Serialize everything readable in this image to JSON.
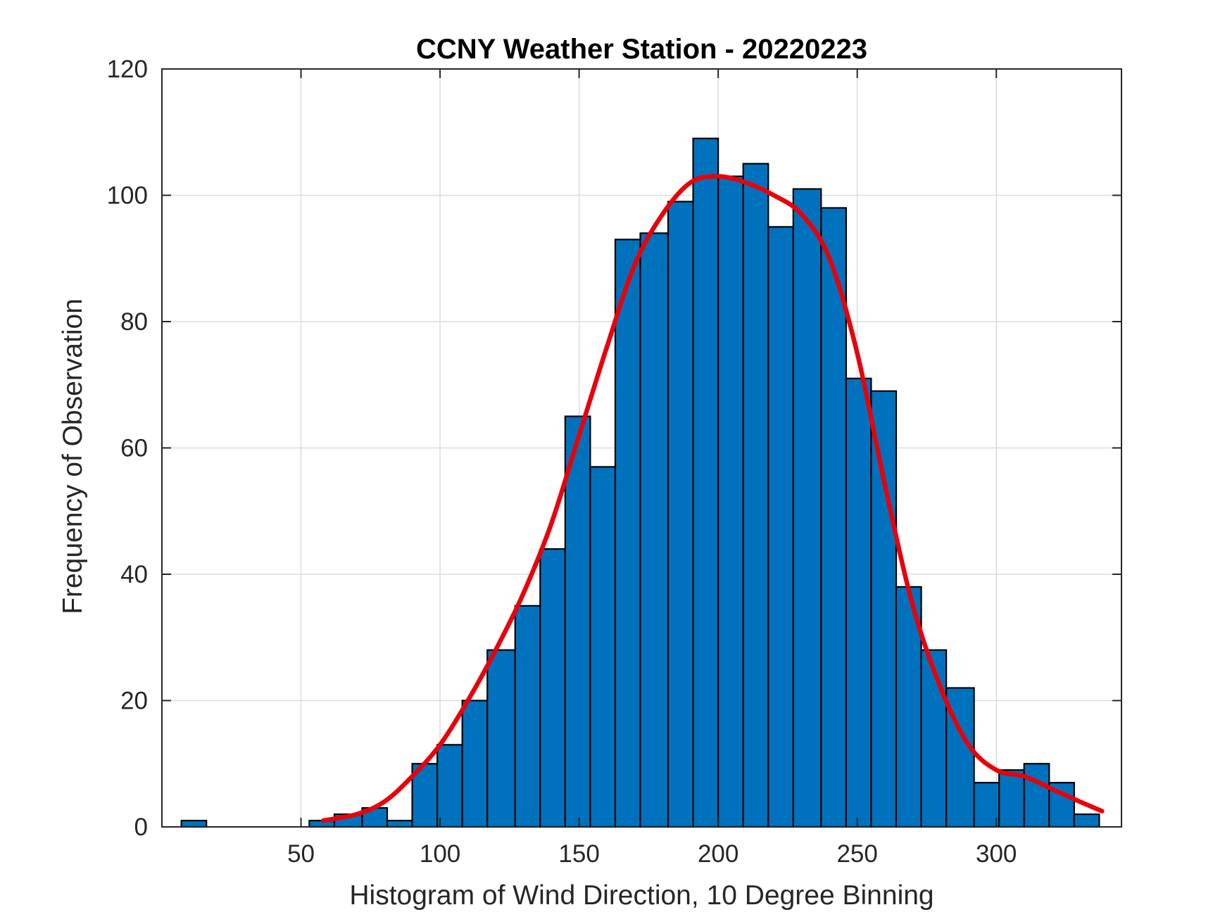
{
  "chart_data": {
    "type": "bar",
    "subtype": "histogram-with-fit",
    "title": "CCNY Weather Station - 20220223",
    "xlabel": "Histogram of Wind Direction, 10 Degree Binning",
    "ylabel": "Frequency of Observation",
    "xlim": [
      0,
      345
    ],
    "ylim": [
      0,
      120
    ],
    "xticks": [
      50,
      100,
      150,
      200,
      250,
      300
    ],
    "yticks": [
      0,
      20,
      40,
      60,
      80,
      100,
      120
    ],
    "grid": true,
    "bar_color": "#0072BD",
    "fit_color": "#E8000B",
    "bins": [
      {
        "x0": 7,
        "x1": 16,
        "count": 1
      },
      {
        "x0": 53,
        "x1": 62,
        "count": 1
      },
      {
        "x0": 62,
        "x1": 72,
        "count": 2
      },
      {
        "x0": 72,
        "x1": 81,
        "count": 3
      },
      {
        "x0": 81,
        "x1": 90,
        "count": 1
      },
      {
        "x0": 90,
        "x1": 99,
        "count": 10
      },
      {
        "x0": 99,
        "x1": 108,
        "count": 13
      },
      {
        "x0": 108,
        "x1": 117,
        "count": 20
      },
      {
        "x0": 117,
        "x1": 127,
        "count": 28
      },
      {
        "x0": 127,
        "x1": 136,
        "count": 35
      },
      {
        "x0": 136,
        "x1": 145,
        "count": 44
      },
      {
        "x0": 145,
        "x1": 154,
        "count": 65
      },
      {
        "x0": 154,
        "x1": 163,
        "count": 57
      },
      {
        "x0": 163,
        "x1": 172,
        "count": 93
      },
      {
        "x0": 172,
        "x1": 182,
        "count": 94
      },
      {
        "x0": 182,
        "x1": 191,
        "count": 99
      },
      {
        "x0": 191,
        "x1": 200,
        "count": 109
      },
      {
        "x0": 200,
        "x1": 209,
        "count": 103
      },
      {
        "x0": 209,
        "x1": 218,
        "count": 105
      },
      {
        "x0": 218,
        "x1": 227,
        "count": 95
      },
      {
        "x0": 227,
        "x1": 237,
        "count": 101
      },
      {
        "x0": 237,
        "x1": 246,
        "count": 98
      },
      {
        "x0": 246,
        "x1": 255,
        "count": 71
      },
      {
        "x0": 255,
        "x1": 264,
        "count": 69
      },
      {
        "x0": 264,
        "x1": 273,
        "count": 38
      },
      {
        "x0": 273,
        "x1": 282,
        "count": 28
      },
      {
        "x0": 282,
        "x1": 292,
        "count": 22
      },
      {
        "x0": 292,
        "x1": 301,
        "count": 7
      },
      {
        "x0": 301,
        "x1": 310,
        "count": 9
      },
      {
        "x0": 310,
        "x1": 319,
        "count": 10
      },
      {
        "x0": 319,
        "x1": 328,
        "count": 7
      },
      {
        "x0": 328,
        "x1": 337,
        "count": 2
      }
    ],
    "fit_curve": {
      "x": [
        58,
        70,
        80,
        90,
        100,
        110,
        120,
        130,
        140,
        150,
        160,
        170,
        180,
        190,
        200,
        210,
        220,
        230,
        240,
        250,
        260,
        270,
        280,
        290,
        300,
        310,
        320,
        330,
        338
      ],
      "y": [
        1,
        2,
        4,
        8,
        13,
        20,
        28,
        37,
        48,
        62,
        76,
        89,
        97,
        102,
        103,
        102,
        100,
        97,
        90,
        75,
        54,
        35,
        22,
        13,
        9,
        8,
        6,
        4,
        2.5
      ]
    }
  }
}
